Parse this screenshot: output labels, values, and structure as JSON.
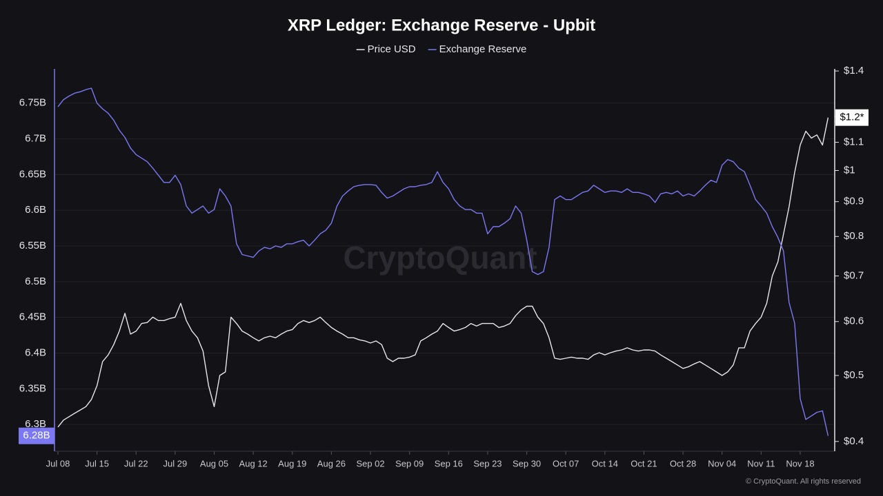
{
  "chart_data": {
    "type": "line",
    "title": "XRP Ledger: Exchange Reserve - Upbit",
    "watermark": "CryptoQuant",
    "footer": "© CryptoQuant. All rights reserved",
    "grid": true,
    "legend": "top",
    "categories": [
      "Jul 08",
      null,
      null,
      null,
      null,
      null,
      null,
      "Jul 15",
      null,
      null,
      null,
      null,
      null,
      null,
      "Jul 22",
      null,
      null,
      null,
      null,
      null,
      null,
      "Jul 29",
      null,
      null,
      null,
      null,
      null,
      null,
      "Aug 05",
      null,
      null,
      null,
      null,
      null,
      null,
      "Aug 12",
      null,
      null,
      null,
      null,
      null,
      null,
      "Aug 19",
      null,
      null,
      null,
      null,
      null,
      null,
      "Aug 26",
      null,
      null,
      null,
      null,
      null,
      null,
      "Sep 02",
      null,
      null,
      null,
      null,
      null,
      null,
      "Sep 09",
      null,
      null,
      null,
      null,
      null,
      null,
      "Sep 16",
      null,
      null,
      null,
      null,
      null,
      null,
      "Sep 23",
      null,
      null,
      null,
      null,
      null,
      null,
      "Sep 30",
      null,
      null,
      null,
      null,
      null,
      null,
      "Oct 07",
      null,
      null,
      null,
      null,
      null,
      null,
      "Oct 14",
      null,
      null,
      null,
      null,
      null,
      null,
      "Oct 21",
      null,
      null,
      null,
      null,
      null,
      null,
      "Oct 28",
      null,
      null,
      null,
      null,
      null,
      null,
      "Nov 04",
      null,
      null,
      null,
      null,
      null,
      null,
      "Nov 11",
      null,
      null,
      null,
      null,
      null,
      null,
      "Nov 18",
      null,
      null,
      null,
      null,
      null
    ],
    "series": [
      {
        "name": "Price USD",
        "color": "#e8e8ec",
        "axis": "y2",
        "current_label": "$1.2*",
        "values": [
          0.42,
          0.43,
          0.435,
          0.44,
          0.445,
          0.45,
          0.461,
          0.483,
          0.524,
          0.536,
          0.555,
          0.581,
          0.617,
          0.575,
          0.581,
          0.596,
          0.598,
          0.609,
          0.602,
          0.602,
          0.606,
          0.609,
          0.638,
          0.602,
          0.581,
          0.568,
          0.543,
          0.483,
          0.45,
          0.5,
          0.506,
          0.609,
          0.596,
          0.581,
          0.575,
          0.568,
          0.562,
          0.568,
          0.571,
          0.568,
          0.575,
          0.581,
          0.584,
          0.596,
          0.602,
          0.598,
          0.602,
          0.609,
          0.598,
          0.588,
          0.581,
          0.575,
          0.568,
          0.568,
          0.564,
          0.562,
          0.558,
          0.562,
          0.555,
          0.53,
          0.524,
          0.53,
          0.53,
          0.532,
          0.536,
          0.562,
          0.568,
          0.575,
          0.581,
          0.596,
          0.588,
          0.581,
          0.584,
          0.588,
          0.596,
          0.591,
          0.596,
          0.596,
          0.596,
          0.588,
          0.591,
          0.596,
          0.612,
          0.624,
          0.632,
          0.632,
          0.609,
          0.596,
          0.568,
          0.53,
          0.528,
          0.53,
          0.532,
          0.53,
          0.53,
          0.528,
          0.536,
          0.54,
          0.536,
          0.54,
          0.543,
          0.545,
          0.549,
          0.545,
          0.543,
          0.545,
          0.545,
          0.543,
          0.536,
          0.53,
          0.524,
          0.518,
          0.512,
          0.515,
          0.52,
          0.524,
          0.518,
          0.512,
          0.506,
          0.5,
          0.506,
          0.518,
          0.549,
          0.549,
          0.581,
          0.596,
          0.609,
          0.638,
          0.7,
          0.734,
          0.806,
          0.884,
          0.993,
          1.09,
          1.142,
          1.116,
          1.128,
          1.09,
          1.196
        ]
      },
      {
        "name": "Exchange Reserve",
        "color": "#7b78f2",
        "axis": "y",
        "current_label": "6.28B",
        "values": [
          6.745,
          6.755,
          6.76,
          6.764,
          6.766,
          6.769,
          6.771,
          6.75,
          6.742,
          6.736,
          6.726,
          6.712,
          6.702,
          6.687,
          6.678,
          6.673,
          6.668,
          6.659,
          6.649,
          6.639,
          6.639,
          6.649,
          6.636,
          6.606,
          6.596,
          6.601,
          6.606,
          6.596,
          6.601,
          6.63,
          6.62,
          6.606,
          6.553,
          6.538,
          6.536,
          6.534,
          6.543,
          6.548,
          6.546,
          6.55,
          6.548,
          6.553,
          6.553,
          6.556,
          6.558,
          6.55,
          6.558,
          6.567,
          6.572,
          6.582,
          6.606,
          6.62,
          6.627,
          6.633,
          6.635,
          6.636,
          6.636,
          6.635,
          6.625,
          6.617,
          6.62,
          6.625,
          6.63,
          6.633,
          6.633,
          6.635,
          6.636,
          6.639,
          6.654,
          6.639,
          6.63,
          6.615,
          6.606,
          6.601,
          6.601,
          6.596,
          6.596,
          6.567,
          6.577,
          6.577,
          6.582,
          6.588,
          6.606,
          6.596,
          6.558,
          6.514,
          6.51,
          6.514,
          6.548,
          6.615,
          6.62,
          6.615,
          6.615,
          6.62,
          6.625,
          6.627,
          6.635,
          6.63,
          6.625,
          6.627,
          6.627,
          6.625,
          6.63,
          6.625,
          6.625,
          6.623,
          6.62,
          6.611,
          6.623,
          6.625,
          6.623,
          6.627,
          6.62,
          6.623,
          6.62,
          6.627,
          6.635,
          6.642,
          6.639,
          6.663,
          6.671,
          6.668,
          6.659,
          6.654,
          6.635,
          6.615,
          6.606,
          6.596,
          6.577,
          6.562,
          6.543,
          6.471,
          6.442,
          6.336,
          6.307,
          6.312,
          6.317,
          6.319,
          6.284
        ]
      }
    ],
    "ylim": [
      6.2625,
      6.798
    ],
    "yticks": [
      {
        "value": 6.3,
        "label": "6.3B"
      },
      {
        "value": 6.35,
        "label": "6.35B"
      },
      {
        "value": 6.4,
        "label": "6.4B"
      },
      {
        "value": 6.45,
        "label": "6.45B"
      },
      {
        "value": 6.5,
        "label": "6.5B"
      },
      {
        "value": 6.55,
        "label": "6.55B"
      },
      {
        "value": 6.6,
        "label": "6.6B"
      },
      {
        "value": 6.65,
        "label": "6.65B"
      },
      {
        "value": 6.7,
        "label": "6.7B"
      },
      {
        "value": 6.75,
        "label": "6.75B"
      }
    ],
    "y2lim": [
      0.387,
      1.41
    ],
    "y2log": true,
    "y2ticks": [
      {
        "value": 0.4,
        "label": "$0.4"
      },
      {
        "value": 0.5,
        "label": "$0.5"
      },
      {
        "value": 0.6,
        "label": "$0.6"
      },
      {
        "value": 0.7,
        "label": "$0.7"
      },
      {
        "value": 0.8,
        "label": "$0.8"
      },
      {
        "value": 0.9,
        "label": "$0.9"
      },
      {
        "value": 1,
        "label": "$1"
      },
      {
        "value": 1.1,
        "label": "$1.1"
      },
      {
        "value": 1.2,
        "label": "$1.2"
      },
      {
        "value": 1.4,
        "label": "$1.4"
      }
    ]
  }
}
